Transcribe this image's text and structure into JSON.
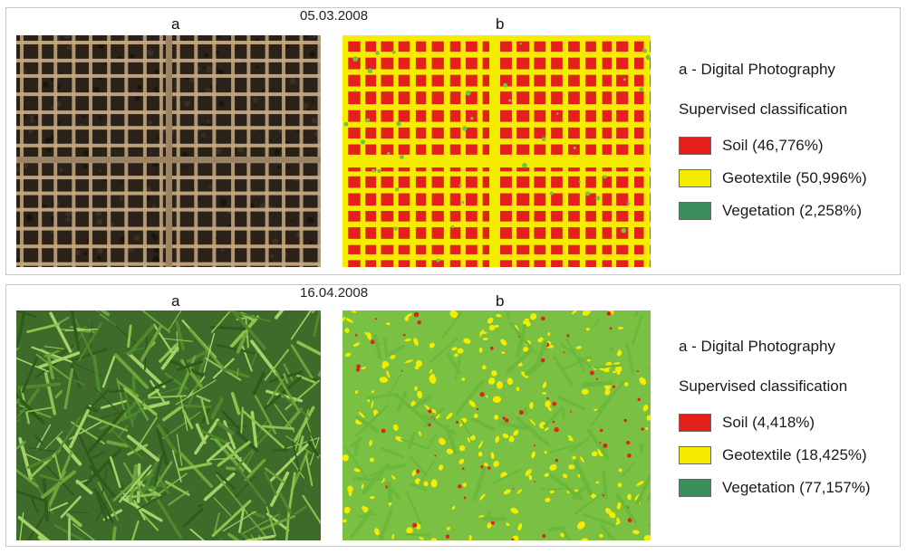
{
  "colors": {
    "soil": "#e3201b",
    "geotextile": "#f5ec00",
    "vegetation": "#3a8f5c",
    "vegetation_map": "#7ac143"
  },
  "panels": [
    {
      "date": "05.03.2008",
      "label_a": "a",
      "label_b": "b",
      "legend": {
        "photo_title": "a - Digital Photography",
        "classification_title": "Supervised classification",
        "items": [
          {
            "label": "Soil (46,776%)",
            "class": "soil"
          },
          {
            "label": "Geotextile (50,996%)",
            "class": "geotextile"
          },
          {
            "label": "Vegetation (2,258%)",
            "class": "vegetation"
          }
        ]
      }
    },
    {
      "date": "16.04.2008",
      "label_a": "a",
      "label_b": "b",
      "legend": {
        "photo_title": "a - Digital Photography",
        "classification_title": "Supervised classification",
        "items": [
          {
            "label": "Soil (4,418%)",
            "class": "soil"
          },
          {
            "label": "Geotextile (18,425%)",
            "class": "geotextile"
          },
          {
            "label": "Vegetation (77,157%)",
            "class": "vegetation"
          }
        ]
      }
    }
  ]
}
